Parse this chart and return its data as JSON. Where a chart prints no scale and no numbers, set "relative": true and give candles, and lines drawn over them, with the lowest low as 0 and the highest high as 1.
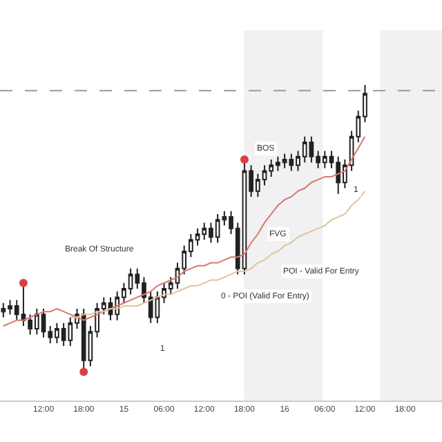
{
  "chart_data": {
    "type": "candlestick",
    "relative": true,
    "tick_labels": "x",
    "grid": false,
    "legend": false,
    "categories": [
      null,
      null,
      null,
      null,
      null,
      null,
      "12:00",
      null,
      null,
      null,
      null,
      null,
      "18:00",
      null,
      null,
      null,
      null,
      null,
      "15",
      null,
      null,
      null,
      null,
      null,
      "06:00",
      null,
      null,
      null,
      null,
      null,
      "12:00",
      null,
      null,
      null,
      null,
      null,
      "18:00",
      null,
      null,
      null,
      null,
      null,
      "16",
      null,
      null,
      null,
      null,
      null,
      "06:00",
      null,
      null,
      null,
      null,
      null,
      "12:00",
      null,
      null,
      null,
      null,
      null,
      "18:00",
      null,
      null,
      null,
      null,
      null
    ],
    "ohlc": [
      [
        0.21,
        0.24,
        0.19,
        0.22
      ],
      [
        0.22,
        0.25,
        0.2,
        0.23
      ],
      [
        0.23,
        0.25,
        0.18,
        0.2
      ],
      [
        0.2,
        0.31,
        0.16,
        0.18
      ],
      [
        0.18,
        0.2,
        0.13,
        0.15
      ],
      [
        0.15,
        0.22,
        0.13,
        0.2
      ],
      [
        0.2,
        0.22,
        0.12,
        0.14
      ],
      [
        0.14,
        0.16,
        0.1,
        0.12
      ],
      [
        0.12,
        0.17,
        0.1,
        0.15
      ],
      [
        0.15,
        0.17,
        0.09,
        0.11
      ],
      [
        0.11,
        0.19,
        0.09,
        0.17
      ],
      [
        0.17,
        0.22,
        0.15,
        0.2
      ],
      [
        0.2,
        0.22,
        0,
        0.04
      ],
      [
        0.04,
        0.16,
        0.02,
        0.14
      ],
      [
        0.14,
        0.24,
        0.12,
        0.22
      ],
      [
        0.22,
        0.26,
        0.2,
        0.24
      ],
      [
        0.24,
        0.26,
        0.18,
        0.2
      ],
      [
        0.2,
        0.28,
        0.18,
        0.26
      ],
      [
        0.26,
        0.31,
        0.24,
        0.29
      ],
      [
        0.29,
        0.36,
        0.27,
        0.34
      ],
      [
        0.34,
        0.36,
        0.29,
        0.31
      ],
      [
        0.31,
        0.33,
        0.24,
        0.26
      ],
      [
        0.26,
        0.28,
        0.17,
        0.19
      ],
      [
        0.19,
        0.28,
        0.17,
        0.26
      ],
      [
        0.26,
        0.31,
        0.24,
        0.29
      ],
      [
        0.29,
        0.33,
        0.27,
        0.31
      ],
      [
        0.31,
        0.38,
        0.29,
        0.36
      ],
      [
        0.36,
        0.44,
        0.34,
        0.42
      ],
      [
        0.42,
        0.48,
        0.4,
        0.46
      ],
      [
        0.46,
        0.5,
        0.44,
        0.48
      ],
      [
        0.48,
        0.52,
        0.46,
        0.5
      ],
      [
        0.5,
        0.52,
        0.45,
        0.47
      ],
      [
        0.47,
        0.55,
        0.45,
        0.53
      ],
      [
        0.53,
        0.56,
        0.51,
        0.54
      ],
      [
        0.54,
        0.56,
        0.48,
        0.5
      ],
      [
        0.5,
        0.52,
        0.34,
        0.36
      ],
      [
        0.36,
        0.74,
        0.34,
        0.7
      ],
      [
        0.7,
        0.72,
        0.61,
        0.63
      ],
      [
        0.63,
        0.69,
        0.61,
        0.67
      ],
      [
        0.67,
        0.72,
        0.65,
        0.7
      ],
      [
        0.7,
        0.74,
        0.68,
        0.72
      ],
      [
        0.72,
        0.75,
        0.7,
        0.73
      ],
      [
        0.73,
        0.76,
        0.71,
        0.74
      ],
      [
        0.74,
        0.76,
        0.7,
        0.72
      ],
      [
        0.72,
        0.77,
        0.7,
        0.75
      ],
      [
        0.75,
        0.82,
        0.73,
        0.8
      ],
      [
        0.8,
        0.82,
        0.73,
        0.75
      ],
      [
        0.75,
        0.77,
        0.71,
        0.73
      ],
      [
        0.73,
        0.77,
        0.71,
        0.75
      ],
      [
        0.75,
        0.77,
        0.71,
        0.73
      ],
      [
        0.73,
        0.75,
        0.62,
        0.66
      ],
      [
        0.66,
        0.74,
        0.64,
        0.72
      ],
      [
        0.72,
        0.84,
        0.7,
        0.82
      ],
      [
        0.82,
        0.91,
        0.8,
        0.89
      ],
      [
        0.89,
        1,
        0.87,
        0.97
      ],
      null,
      null,
      null,
      null,
      null,
      null,
      null,
      null,
      null,
      null,
      null
    ],
    "series": [
      {
        "type": "line",
        "color": "#d9776b",
        "values": [
          0.16,
          0.17,
          0.18,
          0.18,
          0.19,
          0.2,
          0.21,
          0.21,
          0.22,
          0.21,
          0.2,
          0.19,
          0.18,
          0.19,
          0.2,
          0.21,
          0.22,
          0.23,
          0.24,
          0.25,
          0.26,
          0.27,
          0.28,
          0.3,
          0.31,
          0.32,
          0.33,
          0.35,
          0.36,
          0.37,
          0.37,
          0.38,
          0.38,
          0.39,
          0.4,
          0.4,
          0.41,
          0.45,
          0.48,
          0.52,
          0.55,
          0.58,
          0.6,
          0.61,
          0.63,
          0.64,
          0.66,
          0.67,
          0.68,
          0.68,
          0.69,
          0.7,
          0.74,
          0.78,
          0.82,
          null,
          null,
          null,
          null,
          null,
          null,
          null,
          null,
          null,
          null,
          null
        ]
      },
      {
        "type": "line",
        "color": "#e0c39a",
        "values": [
          null,
          null,
          null,
          null,
          null,
          null,
          null,
          null,
          null,
          null,
          0.19,
          0.19,
          0.2,
          0.2,
          0.21,
          0.21,
          0.22,
          0.22,
          0.23,
          0.23,
          0.23,
          0.24,
          0.25,
          0.26,
          0.27,
          0.27,
          0.28,
          0.29,
          0.3,
          0.3,
          0.31,
          0.32,
          0.32,
          0.33,
          0.34,
          0.35,
          0.35,
          0.36,
          0.38,
          0.39,
          0.41,
          0.42,
          0.44,
          0.45,
          0.47,
          0.48,
          0.49,
          0.5,
          0.51,
          0.53,
          0.54,
          0.55,
          0.58,
          0.6,
          0.63,
          null,
          null,
          null,
          null,
          null,
          null,
          null,
          null,
          null,
          null,
          null
        ]
      },
      {
        "type": "scatter",
        "marker": "circle",
        "color": "#d94040",
        "values": [
          null,
          null,
          null,
          0.31,
          null,
          null,
          null,
          null,
          null,
          null,
          null,
          null,
          0,
          null,
          null,
          null,
          null,
          null,
          null,
          null,
          null,
          null,
          null,
          null,
          null,
          null,
          null,
          null,
          null,
          null,
          null,
          null,
          null,
          null,
          null,
          null,
          0.74,
          null,
          null,
          null,
          null,
          null,
          null,
          null,
          null,
          null,
          null,
          null,
          null,
          null,
          null,
          null,
          null,
          null,
          null,
          null,
          null,
          null,
          null,
          null,
          null,
          null,
          null,
          null,
          null,
          null
        ]
      }
    ],
    "ref_lines": [
      {
        "axis": "y",
        "value": 0.98,
        "color": "#999999",
        "line_style": "dashed"
      }
    ],
    "annotations": [
      "Break Of Structure",
      "BOS",
      "FVG",
      "0 - POI (Valid For Entry)",
      "POI - Valid For Entry",
      "1",
      "1"
    ]
  }
}
